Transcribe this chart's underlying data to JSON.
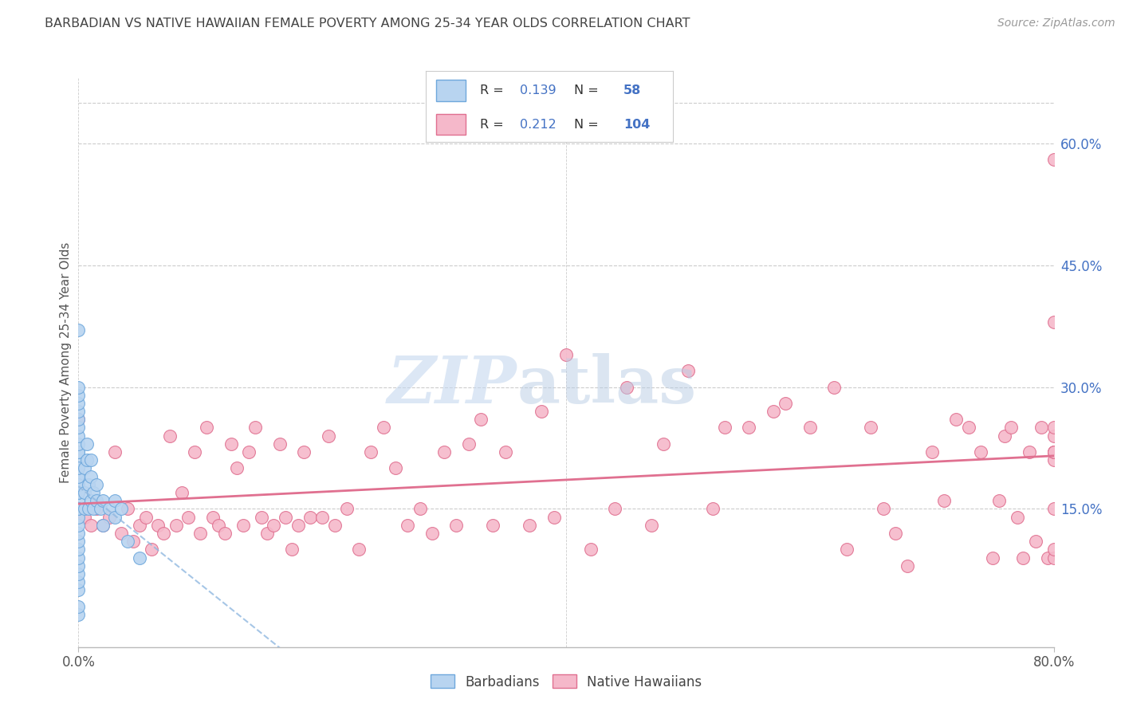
{
  "title": "BARBADIAN VS NATIVE HAWAIIAN FEMALE POVERTY AMONG 25-34 YEAR OLDS CORRELATION CHART",
  "source": "Source: ZipAtlas.com",
  "ylabel": "Female Poverty Among 25-34 Year Olds",
  "xlim": [
    0.0,
    0.8
  ],
  "ylim": [
    -0.02,
    0.68
  ],
  "xtick_positions": [
    0.0,
    0.8
  ],
  "xtick_labels": [
    "0.0%",
    "80.0%"
  ],
  "yticks_right": [
    0.15,
    0.3,
    0.45,
    0.6
  ],
  "barbadian_color": "#b8d4f0",
  "barbadian_edge": "#6fa8dc",
  "native_hawaiian_color": "#f5b8ca",
  "native_hawaiian_edge": "#e07090",
  "trend_barbadian_color": "#90b8e0",
  "trend_native_hawaiian_color": "#e07090",
  "R_barbadian": 0.139,
  "N_barbadian": 58,
  "R_native_hawaiian": 0.212,
  "N_native_hawaiian": 104,
  "background_color": "#ffffff",
  "grid_color": "#cccccc",
  "title_color": "#444444",
  "axis_label_color": "#555555",
  "legend_text_color": "#4472c4",
  "barbadian_x": [
    0.0,
    0.0,
    0.0,
    0.0,
    0.0,
    0.0,
    0.0,
    0.0,
    0.0,
    0.0,
    0.0,
    0.0,
    0.0,
    0.0,
    0.0,
    0.0,
    0.0,
    0.0,
    0.0,
    0.0,
    0.0,
    0.0,
    0.0,
    0.0,
    0.0,
    0.0,
    0.0,
    0.0,
    0.0,
    0.0,
    0.0,
    0.0,
    0.0,
    0.0,
    0.0,
    0.005,
    0.005,
    0.005,
    0.007,
    0.007,
    0.008,
    0.008,
    0.01,
    0.01,
    0.01,
    0.012,
    0.012,
    0.015,
    0.015,
    0.018,
    0.02,
    0.02,
    0.025,
    0.03,
    0.03,
    0.035,
    0.04,
    0.05
  ],
  "barbadian_y": [
    0.02,
    0.03,
    0.05,
    0.06,
    0.07,
    0.08,
    0.09,
    0.1,
    0.11,
    0.12,
    0.13,
    0.14,
    0.15,
    0.16,
    0.17,
    0.18,
    0.19,
    0.2,
    0.21,
    0.22,
    0.22,
    0.23,
    0.24,
    0.25,
    0.26,
    0.27,
    0.28,
    0.29,
    0.3,
    0.17,
    0.18,
    0.19,
    0.2,
    0.15,
    0.37,
    0.15,
    0.17,
    0.2,
    0.21,
    0.23,
    0.15,
    0.18,
    0.16,
    0.19,
    0.21,
    0.15,
    0.17,
    0.16,
    0.18,
    0.15,
    0.13,
    0.16,
    0.15,
    0.14,
    0.16,
    0.15,
    0.11,
    0.09
  ],
  "native_hawaiian_x": [
    0.0,
    0.005,
    0.01,
    0.015,
    0.02,
    0.025,
    0.03,
    0.035,
    0.04,
    0.045,
    0.05,
    0.055,
    0.06,
    0.065,
    0.07,
    0.075,
    0.08,
    0.085,
    0.09,
    0.095,
    0.1,
    0.105,
    0.11,
    0.115,
    0.12,
    0.125,
    0.13,
    0.135,
    0.14,
    0.145,
    0.15,
    0.155,
    0.16,
    0.165,
    0.17,
    0.175,
    0.18,
    0.185,
    0.19,
    0.2,
    0.205,
    0.21,
    0.22,
    0.23,
    0.24,
    0.25,
    0.26,
    0.27,
    0.28,
    0.29,
    0.3,
    0.31,
    0.32,
    0.33,
    0.34,
    0.35,
    0.37,
    0.38,
    0.39,
    0.4,
    0.42,
    0.44,
    0.45,
    0.47,
    0.48,
    0.5,
    0.52,
    0.53,
    0.55,
    0.57,
    0.58,
    0.6,
    0.62,
    0.63,
    0.65,
    0.66,
    0.67,
    0.68,
    0.7,
    0.71,
    0.72,
    0.73,
    0.74,
    0.75,
    0.755,
    0.76,
    0.765,
    0.77,
    0.775,
    0.78,
    0.785,
    0.79,
    0.795,
    0.8,
    0.8,
    0.8,
    0.8,
    0.8,
    0.8,
    0.8,
    0.8,
    0.8,
    0.8,
    0.8
  ],
  "native_hawaiian_y": [
    0.26,
    0.14,
    0.13,
    0.15,
    0.13,
    0.14,
    0.22,
    0.12,
    0.15,
    0.11,
    0.13,
    0.14,
    0.1,
    0.13,
    0.12,
    0.24,
    0.13,
    0.17,
    0.14,
    0.22,
    0.12,
    0.25,
    0.14,
    0.13,
    0.12,
    0.23,
    0.2,
    0.13,
    0.22,
    0.25,
    0.14,
    0.12,
    0.13,
    0.23,
    0.14,
    0.1,
    0.13,
    0.22,
    0.14,
    0.14,
    0.24,
    0.13,
    0.15,
    0.1,
    0.22,
    0.25,
    0.2,
    0.13,
    0.15,
    0.12,
    0.22,
    0.13,
    0.23,
    0.26,
    0.13,
    0.22,
    0.13,
    0.27,
    0.14,
    0.34,
    0.1,
    0.15,
    0.3,
    0.13,
    0.23,
    0.32,
    0.15,
    0.25,
    0.25,
    0.27,
    0.28,
    0.25,
    0.3,
    0.1,
    0.25,
    0.15,
    0.12,
    0.08,
    0.22,
    0.16,
    0.26,
    0.25,
    0.22,
    0.09,
    0.16,
    0.24,
    0.25,
    0.14,
    0.09,
    0.22,
    0.11,
    0.25,
    0.09,
    0.21,
    0.22,
    0.24,
    0.25,
    0.22,
    0.58,
    0.38,
    0.15,
    0.09,
    0.1,
    0.22
  ]
}
